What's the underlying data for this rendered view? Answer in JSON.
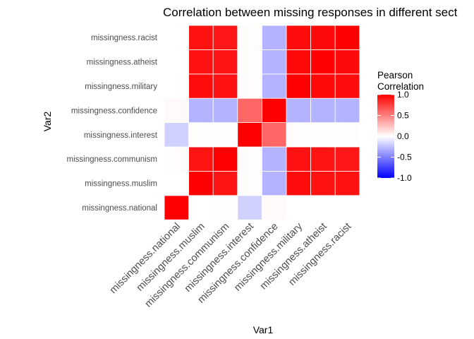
{
  "chart_data": {
    "type": "heatmap",
    "title": "Correlation between missing responses in different sect",
    "xlabel": "Var1",
    "ylabel": "Var2",
    "x_categories": [
      "missingness.national",
      "missingness.muslim",
      "missingness.communism",
      "missingness.interest",
      "missingness.confidence",
      "missingness.military",
      "missingness.atheist",
      "missingness.racist"
    ],
    "y_categories": [
      "missingness.national",
      "missingness.muslim",
      "missingness.communism",
      "missingness.interest",
      "missingness.confidence",
      "missingness.military",
      "missingness.atheist",
      "missingness.racist"
    ],
    "values": [
      [
        1.0,
        0.0,
        0.01,
        -0.18,
        0.02,
        0.0,
        0.0,
        0.0
      ],
      [
        0.0,
        1.0,
        0.92,
        0.01,
        -0.3,
        0.95,
        0.93,
        0.93
      ],
      [
        0.01,
        0.92,
        1.0,
        0.01,
        -0.3,
        0.93,
        0.92,
        0.91
      ],
      [
        -0.18,
        0.01,
        0.01,
        1.0,
        0.6,
        0.01,
        0.01,
        0.01
      ],
      [
        0.02,
        -0.3,
        -0.3,
        0.6,
        1.0,
        -0.3,
        -0.3,
        -0.3
      ],
      [
        0.0,
        0.95,
        0.93,
        0.01,
        -0.3,
        1.0,
        0.97,
        0.95
      ],
      [
        0.0,
        0.93,
        0.92,
        0.01,
        -0.3,
        0.97,
        1.0,
        0.96
      ],
      [
        0.0,
        0.93,
        0.91,
        0.01,
        -0.3,
        0.95,
        0.96,
        1.0
      ]
    ],
    "value_range": [
      -1,
      1
    ],
    "colors": {
      "low": "#0000ff",
      "mid": "#ffffff",
      "high": "#ff0000"
    },
    "legend": {
      "title_lines": [
        "Pearson",
        "Correlation"
      ],
      "ticks": [
        1.0,
        0.5,
        0.0,
        -0.5,
        -1.0
      ],
      "tick_labels": [
        "1.0",
        "0.5",
        "0.0",
        "-0.5",
        "-1.0"
      ],
      "placement": "right"
    },
    "grid": false
  }
}
